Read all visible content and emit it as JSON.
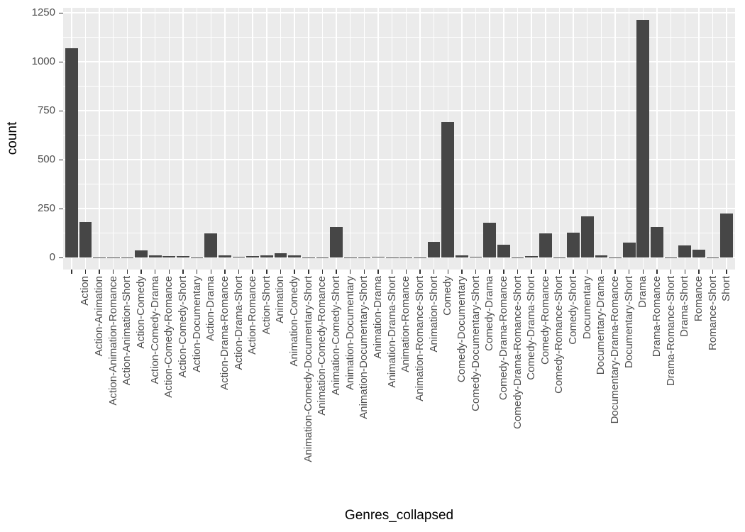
{
  "chart_data": {
    "type": "bar",
    "title": "",
    "xlabel": "Genres_collapsed",
    "ylabel": "count",
    "categories": [
      "",
      "Action",
      "Action-Animation",
      "Action-Animation-Romance",
      "Action-Animation-Short",
      "Action-Comedy",
      "Action-Comedy-Drama",
      "Action-Comedy-Romance",
      "Action-Comedy-Short",
      "Action-Documentary",
      "Action-Drama",
      "Action-Drama-Romance",
      "Action-Drama-Short",
      "Action-Romance",
      "Action-Short",
      "Animation",
      "Animation-Comedy",
      "Animation-Comedy-Documentary-Short",
      "Animation-Comedy-Romance",
      "Animation-Comedy-Short",
      "Animation-Documentary",
      "Animation-Documentary-Short",
      "Animation-Drama",
      "Animation-Drama-Short",
      "Animation-Romance",
      "Animation-Romance-Short",
      "Animation-Short",
      "Comedy",
      "Comedy-Documentary",
      "Comedy-Documentary-Short",
      "Comedy-Drama",
      "Comedy-Drama-Romance",
      "Comedy-Drama-Romance-Short",
      "Comedy-Drama-Short",
      "Comedy-Romance",
      "Comedy-Romance-Short",
      "Comedy-Short",
      "Documentary",
      "Documentary-Drama",
      "Documentary-Drama-Romance",
      "Documentary-Short",
      "Drama",
      "Drama-Romance",
      "Drama-Romance-Short",
      "Drama-Short",
      "Romance",
      "Romance-Short",
      "Short"
    ],
    "values": [
      1070,
      181,
      2,
      2,
      2,
      36,
      12,
      8,
      8,
      2,
      123,
      12,
      3,
      8,
      12,
      24,
      12,
      2,
      2,
      156,
      1,
      2,
      3,
      2,
      2,
      1,
      82,
      694,
      11,
      3,
      179,
      68,
      2,
      8,
      125,
      2,
      127,
      211,
      12,
      2,
      78,
      1216,
      157,
      2,
      64,
      40,
      2,
      227
    ],
    "ylim": [
      0,
      1276
    ],
    "yticks": [
      0,
      250,
      500,
      750,
      1000,
      1250
    ],
    "yticks_minor": [
      125,
      375,
      625,
      875,
      1125
    ],
    "grid": "on",
    "legend_position": "none",
    "bar_color": "#464646",
    "panel_background": "#EBEBEB",
    "grid_color": "#FFFFFF",
    "axis_text_color": "#4D4D4D",
    "axis_title_color": "#000000",
    "tick_color": "#333333"
  }
}
